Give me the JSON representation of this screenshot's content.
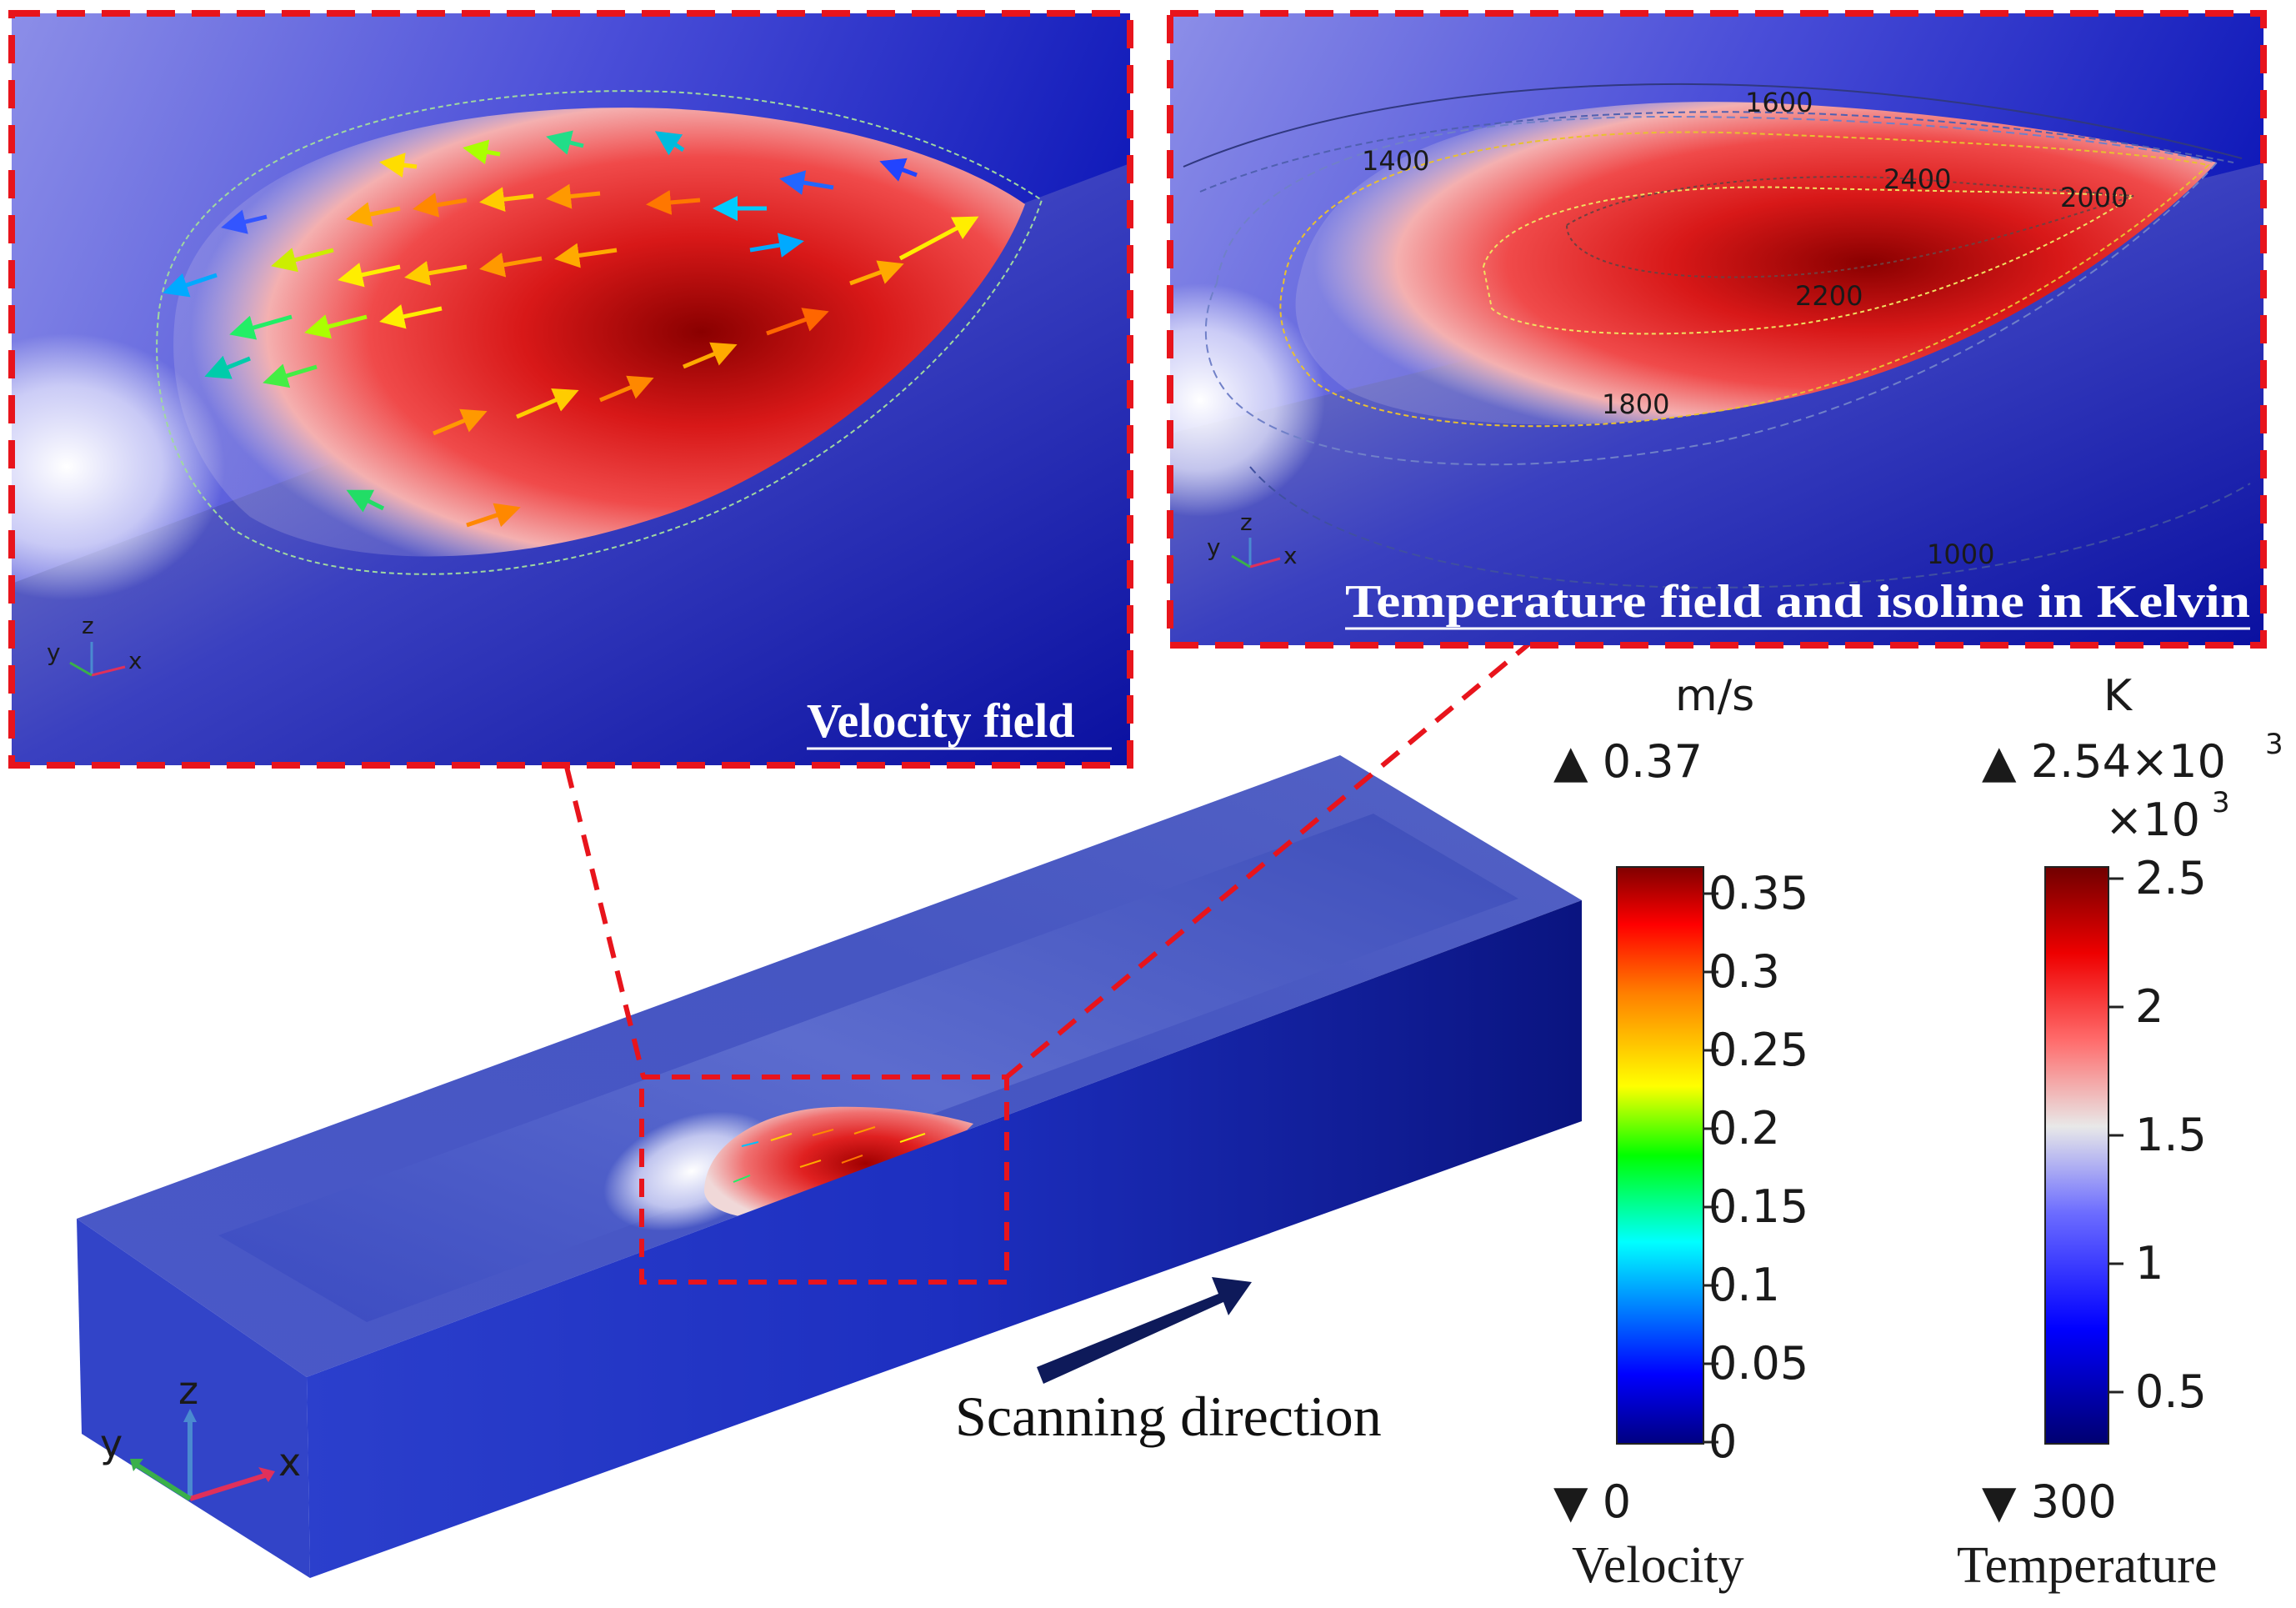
{
  "velocity_panel": {
    "title": "Velocity field",
    "axes": {
      "x": "x",
      "y": "y",
      "z": "z"
    }
  },
  "temperature_panel": {
    "title": "Temperature field and isoline in Kelvin",
    "isolines": [
      "1400",
      "1600",
      "2400",
      "2000",
      "2200",
      "1800",
      "1000"
    ],
    "axes": {
      "x": "x",
      "y": "y",
      "z": "z"
    }
  },
  "main_view": {
    "scan_label": "Scanning direction",
    "axes": {
      "x": "x",
      "y": "y",
      "z": "z"
    }
  },
  "velocity_legend": {
    "unit": "m/s",
    "max_label": "▲ 0.37",
    "min_label": "▼ 0",
    "ticks": [
      "0.35",
      "0.3",
      "0.25",
      "0.2",
      "0.15",
      "0.1",
      "0.05",
      "0"
    ],
    "name": "Velocity"
  },
  "temperature_legend": {
    "unit": "K",
    "max_label_prefix": "▲ 2.54×10",
    "max_label_exp": "3",
    "multiplier": "×10",
    "multiplier_exp": "3",
    "min_label": "▼ 300",
    "ticks": [
      "2.5",
      "2",
      "1.5",
      "1",
      "0.5"
    ],
    "name": "Temperature"
  },
  "colors": {
    "accent_red": "#e8141c",
    "arrow_navy": "#0e1a5a",
    "block_blue": "#3a4cc4"
  }
}
